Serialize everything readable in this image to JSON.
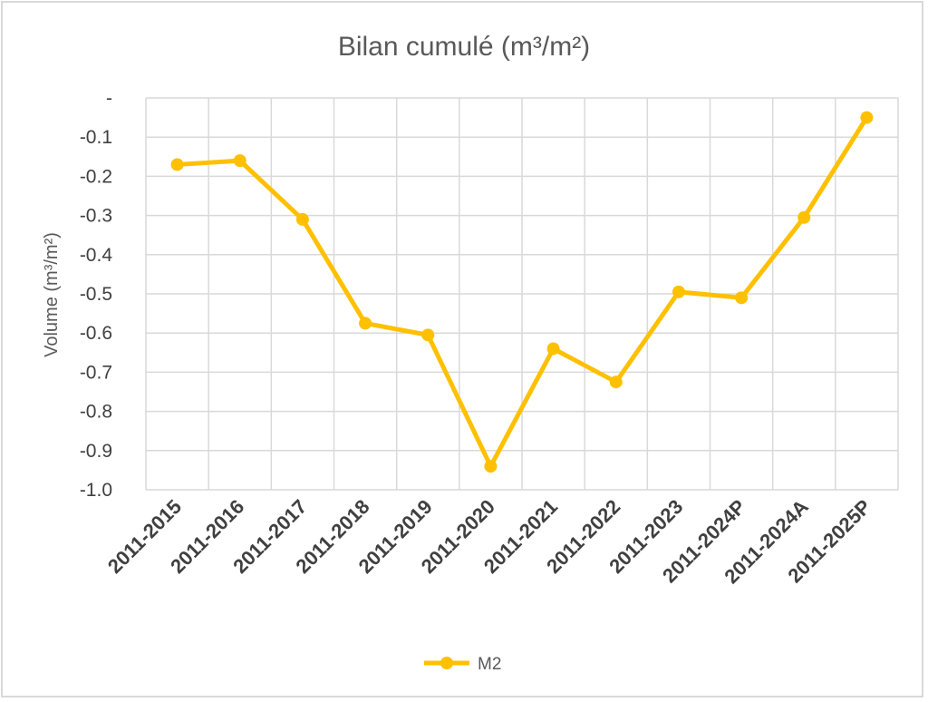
{
  "chart_data": {
    "type": "line",
    "title": "Bilan cumulé (m³/m²)",
    "ylabel": "Volume (m³/m²)",
    "xlabel": "",
    "categories": [
      "2011-2015",
      "2011-2016",
      "2011-2017",
      "2011-2018",
      "2011-2019",
      "2011-2020",
      "2011-2021",
      "2011-2022",
      "2011-2023",
      "2011-2024P",
      "2011-2024A",
      "2011-2025P"
    ],
    "series": [
      {
        "name": "M2",
        "color": "#FFC000",
        "values": [
          -0.17,
          -0.16,
          -0.31,
          -0.575,
          -0.605,
          -0.94,
          -0.64,
          -0.725,
          -0.495,
          -0.51,
          -0.305,
          -0.05
        ]
      }
    ],
    "ylim": [
      -1.0,
      0
    ],
    "yticks": [
      "-",
      "-0.1",
      "-0.2",
      "-0.3",
      "-0.4",
      "-0.5",
      "-0.6",
      "-0.7",
      "-0.8",
      "-0.9",
      "-1.0"
    ],
    "grid": true,
    "legend_position": "bottom"
  }
}
